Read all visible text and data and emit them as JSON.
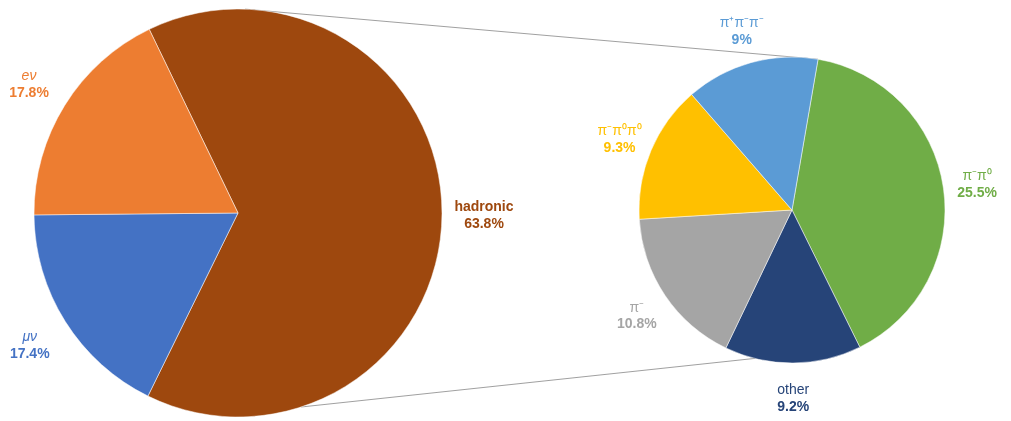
{
  "chart_data": [
    {
      "type": "pie",
      "categories": [
        "hadronic",
        "μν",
        "eν"
      ],
      "values": [
        63.8,
        17.4,
        17.8
      ],
      "colors": [
        "#9e480e",
        "#4472c4",
        "#ed7d31"
      ],
      "value_labels": [
        "63.8%",
        "17.4%",
        "17.8%"
      ]
    },
    {
      "type": "pie",
      "categories": [
        "π⁻π⁰",
        "other",
        "π⁻",
        "π⁻π⁰π⁰",
        "π⁺π⁻π⁻"
      ],
      "values": [
        25.5,
        9.2,
        10.8,
        9.3,
        9
      ],
      "colors": [
        "#70ad47",
        "#264478",
        "#a5a5a5",
        "#ffc000",
        "#5b9bd5"
      ],
      "value_labels": [
        "25.5%",
        "9.2%",
        "10.8%",
        "9.3%",
        "9%"
      ]
    }
  ]
}
